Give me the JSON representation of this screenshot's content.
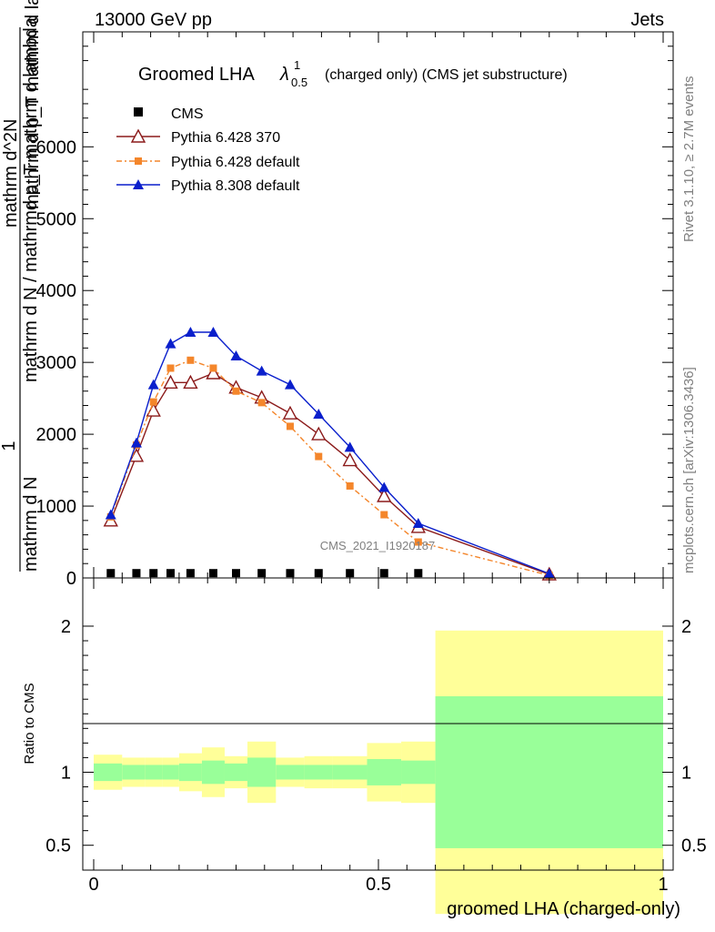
{
  "header": {
    "energy": "13000 GeV pp",
    "process": "Jets"
  },
  "side_labels": {
    "rivet": "Rivet 3.1.10, ≥ 2.7M events",
    "mcplots": "mcplots.cern.ch [arXiv:1306.3436]"
  },
  "watermark": "CMS_2021_I1920187",
  "chart_data": [
    {
      "type": "line",
      "title_main": "Groomed LHA",
      "title_lambda": "λ",
      "title_sup": "1",
      "title_sub": "0.5",
      "title_rest": "(charged only) (CMS jet substructure)",
      "ylabel_top": "1",
      "ylabel_num": "mathrm d N",
      "ylabel_den": "mathrm d N / mathrmd p_T mathrm d lambda",
      "ylabel_frac_num": "mathrm d^2N",
      "ylabel_frac_den": "mathrm d p_T mathrm d lambda",
      "xlim": [
        0,
        1
      ],
      "ylim": [
        0,
        7600
      ],
      "yticks": [
        {
          "v": 0,
          "label": "0"
        },
        {
          "v": 1000,
          "label": "1000"
        },
        {
          "v": 2000,
          "label": "2000"
        },
        {
          "v": 3000,
          "label": "3000"
        },
        {
          "v": 4000,
          "label": "4000"
        },
        {
          "v": 5000,
          "label": "5000"
        },
        {
          "v": 6000,
          "label": "6000"
        }
      ],
      "x": [
        0.03,
        0.075,
        0.105,
        0.135,
        0.17,
        0.21,
        0.25,
        0.295,
        0.345,
        0.395,
        0.45,
        0.51,
        0.57,
        0.8
      ],
      "series": [
        {
          "name": "CMS",
          "color": "#000000",
          "marker": "square",
          "values": [
            10,
            10,
            10,
            10,
            10,
            10,
            10,
            10,
            10,
            10,
            10,
            10,
            10,
            null
          ]
        },
        {
          "name": "Pythia 6.428 370",
          "color": "#8b1a1a",
          "marker": "open-triangle",
          "values": [
            800,
            1700,
            2330,
            2720,
            2720,
            2850,
            2650,
            2510,
            2290,
            2000,
            1640,
            1140,
            710,
            50
          ]
        },
        {
          "name": "Pythia 6.428 default",
          "color": "#f4862b",
          "marker": "filled-square",
          "dash": true,
          "values": [
            850,
            1850,
            2450,
            2920,
            3030,
            2920,
            2600,
            2440,
            2110,
            1690,
            1280,
            880,
            500,
            35
          ]
        },
        {
          "name": "Pythia 8.308 default",
          "color": "#0a1fcc",
          "marker": "filled-triangle",
          "values": [
            880,
            1880,
            2690,
            3260,
            3420,
            3420,
            3090,
            2880,
            2690,
            2280,
            1820,
            1260,
            760,
            60
          ]
        }
      ]
    },
    {
      "type": "area",
      "ylabel": "Ratio to CMS",
      "xlabel": "groomed LHA (charged-only)",
      "xlim": [
        0,
        1
      ],
      "ylim": [
        0.33,
        2.33
      ],
      "yticks": [
        {
          "v": 0.5,
          "label": "0.5"
        },
        {
          "v": 1,
          "label": "1"
        },
        {
          "v": 2,
          "label": "2"
        }
      ],
      "xticks": [
        {
          "v": 0,
          "label": "0"
        },
        {
          "v": 0.5,
          "label": "0.5"
        },
        {
          "v": 1,
          "label": "1"
        }
      ],
      "bins": [
        {
          "x0": 0.0,
          "x1": 0.05,
          "stat": 0.06,
          "tot": 0.12
        },
        {
          "x0": 0.05,
          "x1": 0.09,
          "stat": 0.05,
          "tot": 0.1
        },
        {
          "x0": 0.09,
          "x1": 0.12,
          "stat": 0.05,
          "tot": 0.1
        },
        {
          "x0": 0.12,
          "x1": 0.15,
          "stat": 0.05,
          "tot": 0.1
        },
        {
          "x0": 0.15,
          "x1": 0.19,
          "stat": 0.06,
          "tot": 0.13
        },
        {
          "x0": 0.19,
          "x1": 0.23,
          "stat": 0.08,
          "tot": 0.17
        },
        {
          "x0": 0.23,
          "x1": 0.27,
          "stat": 0.06,
          "tot": 0.11
        },
        {
          "x0": 0.27,
          "x1": 0.32,
          "stat": 0.1,
          "tot": 0.21
        },
        {
          "x0": 0.32,
          "x1": 0.37,
          "stat": 0.05,
          "tot": 0.1
        },
        {
          "x0": 0.37,
          "x1": 0.42,
          "stat": 0.05,
          "tot": 0.11
        },
        {
          "x0": 0.42,
          "x1": 0.48,
          "stat": 0.05,
          "tot": 0.11
        },
        {
          "x0": 0.48,
          "x1": 0.54,
          "stat": 0.09,
          "tot": 0.2
        },
        {
          "x0": 0.54,
          "x1": 0.6,
          "stat": 0.08,
          "tot": 0.21
        },
        {
          "x0": 0.6,
          "x1": 1.0,
          "stat": 0.52,
          "tot": 0.97
        }
      ],
      "colors": {
        "stat": "#99ff99",
        "total": "#ffff99"
      }
    }
  ]
}
